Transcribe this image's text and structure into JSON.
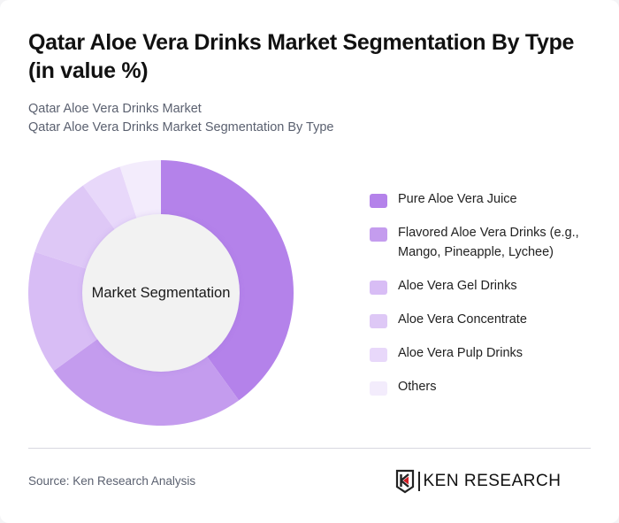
{
  "header": {
    "title": "Qatar Aloe Vera Drinks Market Segmentation By Type (in value %)",
    "subtitle_line1": "Qatar Aloe Vera Drinks Market",
    "subtitle_line2": "Qatar Aloe Vera Drinks Market Segmentation By Type"
  },
  "chart": {
    "center_label": "Market Segmentation"
  },
  "legend": [
    {
      "label": "Pure Aloe Vera Juice",
      "color": "#B482EA"
    },
    {
      "label": "Flavored Aloe Vera Drinks (e.g., Mango, Pineapple, Lychee)",
      "color": "#C49CEE"
    },
    {
      "label": "Aloe Vera Gel Drinks",
      "color": "#D8BDF5"
    },
    {
      "label": "Aloe Vera Concentrate",
      "color": "#DEC8F6"
    },
    {
      "label": "Aloe Vera Pulp Drinks",
      "color": "#E8D8FA"
    },
    {
      "label": "Others",
      "color": "#F3ECFC"
    }
  ],
  "footer": {
    "source": "Source: Ken Research Analysis",
    "logo_text": "KEN RESEARCH"
  },
  "chart_data": {
    "type": "pie",
    "variant": "donut",
    "title": "Qatar Aloe Vera Drinks Market Segmentation By Type (in value %)",
    "subtitle": "Qatar Aloe Vera Drinks Market Segmentation By Type",
    "center_label": "Market Segmentation",
    "categories": [
      "Pure Aloe Vera Juice",
      "Flavored Aloe Vera Drinks (e.g., Mango, Pineapple, Lychee)",
      "Aloe Vera Gel Drinks",
      "Aloe Vera Concentrate",
      "Aloe Vera Pulp Drinks",
      "Others"
    ],
    "values": [
      40,
      25,
      15,
      10,
      5,
      5
    ],
    "unit": "%",
    "colors": [
      "#B482EA",
      "#C49CEE",
      "#D8BDF5",
      "#DEC8F6",
      "#E8D8FA",
      "#F3ECFC"
    ],
    "start_angle": "12 o'clock, clockwise",
    "legend_position": "right",
    "data_labels": false
  }
}
